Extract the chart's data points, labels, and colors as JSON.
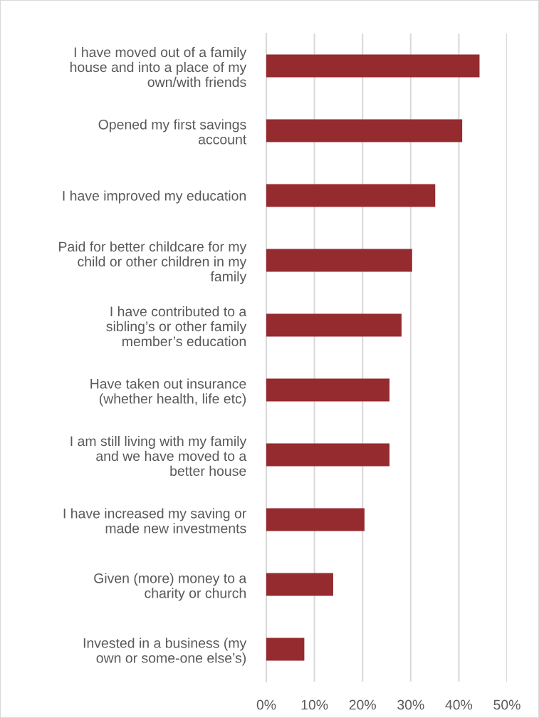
{
  "chart_data": {
    "type": "bar",
    "orientation": "horizontal",
    "categories": [
      "I have moved out of a family\nhouse and into a place of my\nown/with friends",
      "Opened my first savings\naccount",
      "I have improved my education",
      "Paid for better childcare for my\nchild or other children in my\nfamily",
      "I have contributed to a\nsibling’s or other family\nmember’s education",
      "Have taken out insurance\n(whether health, life etc)",
      "I am still living with my family\nand we have moved to a\nbetter house",
      "I have increased my saving or\nmade new investments",
      "Given (more) money to a\ncharity or church",
      "Invested in a business (my\nown or some-one else’s)"
    ],
    "values": [
      44.3,
      40.7,
      35.1,
      30.3,
      28.1,
      25.6,
      25.6,
      20.4,
      13.9,
      7.9
    ],
    "color": "#952a2f",
    "xlim": [
      0,
      50
    ],
    "xticks": [
      {
        "value": 0,
        "label": "0%"
      },
      {
        "value": 10,
        "label": "10%"
      },
      {
        "value": 20,
        "label": "20%"
      },
      {
        "value": 30,
        "label": "30%"
      },
      {
        "value": 40,
        "label": "40%"
      },
      {
        "value": 50,
        "label": "50%"
      }
    ],
    "grid": "x"
  }
}
